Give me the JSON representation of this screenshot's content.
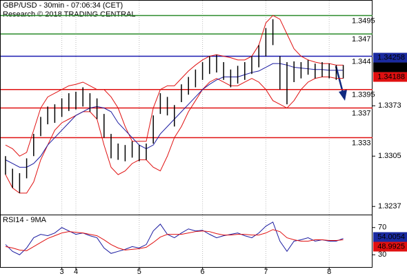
{
  "chart_data": [
    {
      "type": "ohlc",
      "title": "GBP/USD - 30min - 07:06:34 (CET)",
      "subtitle": "Research © 2018 TRADING CENTRAL",
      "categories": [
        null,
        null,
        null,
        null,
        null,
        null,
        null,
        null,
        "3",
        null,
        "4",
        null,
        null,
        null,
        null,
        null,
        null,
        null,
        null,
        "5",
        null,
        null,
        null,
        null,
        null,
        null,
        null,
        null,
        "6",
        null,
        null,
        null,
        null,
        null,
        null,
        null,
        null,
        "7",
        null,
        null,
        null,
        null,
        null,
        null,
        null,
        null,
        "8",
        null,
        null
      ],
      "high": [
        1.3305,
        1.3288,
        1.3282,
        1.3302,
        1.3335,
        1.3358,
        1.3372,
        1.3375,
        1.3383,
        1.339,
        1.3392,
        1.3398,
        1.339,
        1.3383,
        1.3362,
        1.3335,
        1.3322,
        1.332,
        1.3325,
        1.332,
        1.3322,
        1.336,
        1.339,
        1.3385,
        1.3374,
        1.3402,
        1.3412,
        1.3422,
        1.3432,
        1.344,
        1.3442,
        1.3432,
        1.3422,
        1.3427,
        1.3432,
        1.344,
        1.3455,
        1.3478,
        1.349,
        1.344,
        1.3432,
        1.3433,
        1.3432,
        1.3435,
        1.343,
        1.3432,
        1.343,
        1.3428,
        1.3428
      ],
      "low": [
        1.328,
        1.3262,
        1.3255,
        1.3275,
        1.3305,
        1.3332,
        1.3348,
        1.335,
        1.3358,
        1.3366,
        1.3368,
        1.3372,
        1.3365,
        1.3355,
        1.333,
        1.3302,
        1.33,
        1.3298,
        1.3303,
        1.3298,
        1.33,
        1.3322,
        1.3362,
        1.336,
        1.3345,
        1.3378,
        1.3388,
        1.3398,
        1.3408,
        1.3416,
        1.3418,
        1.3408,
        1.3398,
        1.3403,
        1.3408,
        1.3416,
        1.3425,
        1.344,
        1.3455,
        1.3395,
        1.3375,
        1.3405,
        1.341,
        1.3415,
        1.341,
        1.3412,
        1.341,
        1.3408,
        1.341
      ],
      "bar_color": "#000000",
      "series": [
        {
          "color": "#e01010",
          "values": [
            1.332,
            1.3315,
            1.3305,
            1.331,
            1.334,
            1.337,
            1.3385,
            1.339,
            1.3395,
            1.34,
            1.3402,
            1.3405,
            1.34,
            1.3395,
            1.3395,
            1.3385,
            1.337,
            1.3345,
            1.3325,
            1.3325,
            1.3325,
            1.337,
            1.3395,
            1.34,
            1.34,
            1.341,
            1.342,
            1.3428,
            1.3435,
            1.344,
            1.3442,
            1.344,
            1.3438,
            1.3435,
            1.3435,
            1.344,
            1.3455,
            1.3485,
            1.3495,
            1.349,
            1.347,
            1.345,
            1.344,
            1.3435,
            1.3432,
            1.343,
            1.343,
            1.3428,
            1.3428
          ]
        },
        {
          "color": "#e01010",
          "values": [
            1.328,
            1.3262,
            1.3255,
            1.3255,
            1.327,
            1.33,
            1.332,
            1.334,
            1.335,
            1.3355,
            1.336,
            1.3365,
            1.3365,
            1.3355,
            1.332,
            1.329,
            1.328,
            1.3285,
            1.3295,
            1.33,
            1.33,
            1.329,
            1.3285,
            1.3305,
            1.333,
            1.3345,
            1.3365,
            1.338,
            1.3395,
            1.3405,
            1.341,
            1.3405,
            1.34,
            1.34,
            1.3405,
            1.341,
            1.3405,
            1.3395,
            1.338,
            1.3375,
            1.337,
            1.338,
            1.3395,
            1.3405,
            1.341,
            1.3412,
            1.3412,
            1.341,
            1.341
          ]
        },
        {
          "color": "#1a1aa0",
          "values": [
            1.33,
            1.3295,
            1.329,
            1.329,
            1.3295,
            1.3305,
            1.332,
            1.333,
            1.334,
            1.335,
            1.336,
            1.3365,
            1.337,
            1.3372,
            1.337,
            1.3365,
            1.335,
            1.334,
            1.333,
            1.332,
            1.3315,
            1.332,
            1.3335,
            1.3345,
            1.3355,
            1.3365,
            1.3375,
            1.3385,
            1.3395,
            1.3402,
            1.3408,
            1.3412,
            1.3412,
            1.3412,
            1.3415,
            1.3418,
            1.342,
            1.3425,
            1.343,
            1.343,
            1.3428,
            1.3425,
            1.3424,
            1.3423,
            1.3422,
            1.3422,
            1.3421,
            1.3421,
            1.3421
          ]
        }
      ],
      "ylim": [
        1.3226,
        1.3515
      ],
      "yticks": [
        1.3237,
        1.3305,
        1.3373
      ],
      "levels": [
        {
          "value": 1.3495,
          "color": "#2a8a2a"
        },
        {
          "value": 1.347,
          "color": "#2a8a2a"
        },
        {
          "value": 1.344,
          "color": "#1a1ab0"
        },
        {
          "value": 1.3395,
          "color": "#e01010"
        },
        {
          "value": 1.337,
          "color": "#e01010"
        },
        {
          "value": 1.333,
          "color": "#e01010"
        }
      ],
      "price_markers": [
        {
          "value": 1.34258,
          "color": "#1a2aa0"
        },
        {
          "value": 1.3425,
          "color": "#000000"
        },
        {
          "value": 1.34188,
          "color": "#e01010"
        }
      ]
    },
    {
      "type": "line",
      "title": "RSI14 - 9MA",
      "series": [
        {
          "color": "#1a1aa0",
          "values": [
            45,
            35,
            30,
            40,
            55,
            60,
            58,
            62,
            70,
            65,
            60,
            62,
            58,
            55,
            40,
            32,
            35,
            38,
            42,
            40,
            45,
            65,
            75,
            60,
            55,
            62,
            68,
            65,
            66,
            60,
            55,
            58,
            60,
            62,
            58,
            55,
            62,
            72,
            78,
            50,
            35,
            50,
            52,
            55,
            50,
            52,
            50,
            50,
            54
          ]
        },
        {
          "color": "#e01010",
          "values": [
            42,
            40,
            37,
            36,
            42,
            48,
            54,
            58,
            62,
            64,
            63,
            62,
            60,
            58,
            52,
            45,
            40,
            37,
            38,
            39,
            41,
            48,
            56,
            60,
            60,
            60,
            62,
            64,
            65,
            64,
            61,
            59,
            59,
            60,
            60,
            59,
            59,
            62,
            67,
            64,
            55,
            52,
            50,
            50,
            52,
            52,
            51,
            51,
            52
          ]
        }
      ],
      "ylim": [
        12,
        88
      ],
      "yticks": [
        30,
        70
      ],
      "markers": [
        {
          "value": 54.0054,
          "color": "#1a2aa0"
        },
        {
          "value": 48.9925,
          "color": "#e01010"
        }
      ]
    }
  ]
}
